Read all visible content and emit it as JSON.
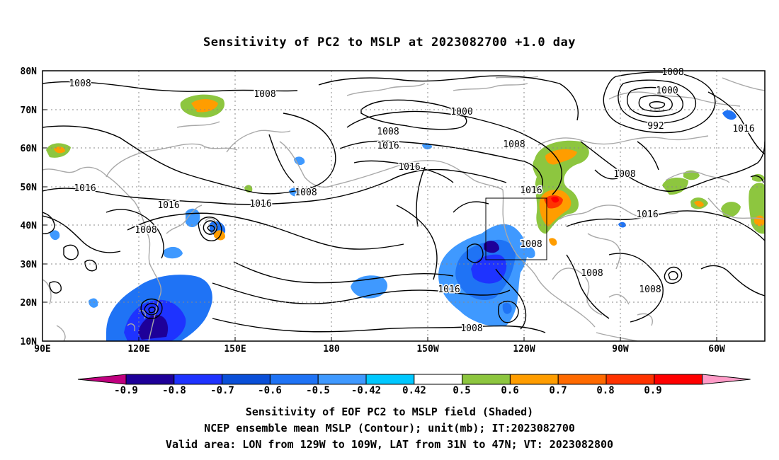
{
  "title": "Sensitivity of PC2 to MSLP at 2023082700 +1.0 day",
  "lat_labels": [
    "80N",
    "70N",
    "60N",
    "50N",
    "40N",
    "30N",
    "20N",
    "10N"
  ],
  "lon_labels": [
    "90E",
    "120E",
    "150E",
    "180",
    "150W",
    "120W",
    "90W",
    "60W"
  ],
  "contour_labels": [
    "1008",
    "1008",
    "1008",
    "1008",
    "1000",
    "1000",
    "992",
    "1016",
    "1008",
    "1016",
    "1016",
    "1016",
    "1016",
    "1016",
    "1016",
    "1008",
    "1008",
    "1016",
    "1008",
    "1008",
    "1016",
    "1008",
    "1008",
    "1008",
    "1008",
    "1016"
  ],
  "colorbar": {
    "labels": [
      "-0.9",
      "-0.8",
      "-0.7",
      "-0.6",
      "-0.5",
      "-0.42",
      "0.42",
      "0.5",
      "0.6",
      "0.7",
      "0.8",
      "0.9"
    ],
    "colors": [
      "#c0007f",
      "#1e0099",
      "#1e33ff",
      "#0a4fd8",
      "#1f73f5",
      "#3f99ff",
      "#00c8ff",
      "#ffffff",
      "#8dc63f",
      "#ff9d00",
      "#ff6a00",
      "#ff3300",
      "#ff0000",
      "#ff9cc8"
    ]
  },
  "footer": {
    "line1": "Sensitivity of EOF PC2 to MSLP field (Shaded)",
    "line2": "NCEP ensemble mean MSLP (Contour); unit(mb); IT:2023082700",
    "line3": "Valid area: LON from 129W to 109W, LAT from 31N to 47N; VT: 2023082800"
  }
}
